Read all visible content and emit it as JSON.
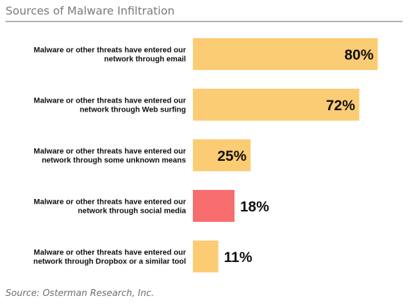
{
  "chart_data": {
    "type": "bar",
    "orientation": "horizontal",
    "title": "Sources of Malware Infiltration",
    "source": "Source: Osterman Research, Inc.",
    "categories": [
      [
        "Malware or other threats have entered our",
        "network through email"
      ],
      [
        "Malware or other threats have entered our",
        "network through Web surfing"
      ],
      [
        "Malware or other threats have entered our",
        "network through some unknown means"
      ],
      [
        "Malware or other threats have entered our",
        "network through social media"
      ],
      [
        "Malware or other threats have entered our",
        "network through Dropbox or a similar tool"
      ]
    ],
    "values": [
      80,
      72,
      25,
      18,
      11
    ],
    "value_labels": [
      "80%",
      "72%",
      "25%",
      "18%",
      "11%"
    ],
    "unit": "%",
    "xlim": [
      0,
      100
    ],
    "bar_colors": [
      "#fccc74",
      "#fccc74",
      "#fccc74",
      "#f76c6c",
      "#fccc74"
    ],
    "grid": false,
    "legend": "none"
  }
}
